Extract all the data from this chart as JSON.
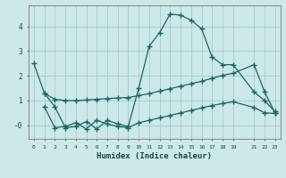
{
  "xlabel": "Humidex (Indice chaleur)",
  "bg_color": "#cce8e8",
  "grid_color": "#aacccc",
  "line_color": "#1a6666",
  "xlim": [
    -0.5,
    23.5
  ],
  "ylim": [
    -0.55,
    4.85
  ],
  "yticks": [
    0,
    1,
    2,
    3,
    4
  ],
  "ytick_labels": [
    "-0",
    "1",
    "2",
    "3",
    "4"
  ],
  "xtick_positions": [
    0,
    1,
    2,
    3,
    4,
    5,
    6,
    7,
    8,
    9,
    10,
    11,
    12,
    13,
    14,
    15,
    16,
    17,
    18,
    19,
    21,
    22,
    23
  ],
  "xtick_labels": [
    "0",
    "1",
    "2",
    "3",
    "4",
    "5",
    "6",
    "7",
    "8",
    "9",
    "10",
    "11",
    "12",
    "13",
    "14",
    "15",
    "16",
    "17",
    "18",
    "19",
    "21",
    "22",
    "23"
  ],
  "series1_x": [
    0,
    1,
    2,
    3,
    4,
    5,
    6,
    7,
    8,
    9,
    10,
    11,
    12,
    13,
    14,
    15,
    16,
    17,
    18,
    19,
    21,
    22,
    23
  ],
  "series1_y": [
    2.5,
    1.3,
    0.75,
    -0.1,
    -0.05,
    0.15,
    -0.15,
    0.2,
    0.05,
    -0.05,
    1.5,
    3.2,
    3.75,
    4.5,
    4.45,
    4.25,
    3.9,
    2.75,
    2.45,
    2.45,
    1.35,
    1.0,
    0.55
  ],
  "series2_x": [
    1,
    2,
    3,
    4,
    5,
    6,
    7,
    8,
    9,
    10,
    11,
    12,
    13,
    14,
    15,
    16,
    17,
    18,
    19,
    21,
    22,
    23
  ],
  "series2_y": [
    1.3,
    1.05,
    1.0,
    1.0,
    1.02,
    1.05,
    1.08,
    1.1,
    1.12,
    1.2,
    1.28,
    1.38,
    1.48,
    1.58,
    1.68,
    1.78,
    1.9,
    2.02,
    2.1,
    2.45,
    1.35,
    0.5
  ],
  "series3_x": [
    1,
    2,
    3,
    4,
    5,
    6,
    7,
    8,
    9,
    10,
    11,
    12,
    13,
    14,
    15,
    16,
    17,
    18,
    19,
    21,
    22,
    23
  ],
  "series3_y": [
    0.75,
    -0.1,
    -0.05,
    0.1,
    -0.15,
    0.2,
    0.05,
    -0.05,
    -0.1,
    0.1,
    0.2,
    0.3,
    0.4,
    0.5,
    0.6,
    0.7,
    0.8,
    0.88,
    0.95,
    0.72,
    0.5,
    0.48
  ]
}
